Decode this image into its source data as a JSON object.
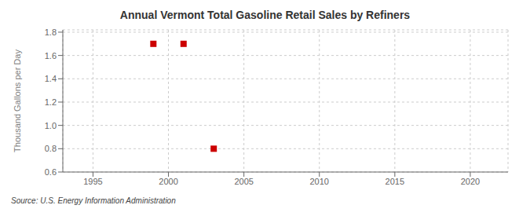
{
  "chart_data": {
    "type": "scatter",
    "title": "Annual Vermont Total Gasoline Retail Sales by Refiners",
    "ylabel": "Thousand Gallons per Day",
    "annotations": [
      "Source: U.S. Energy Information Administration"
    ],
    "x": [
      1999,
      2001,
      2003
    ],
    "values": [
      1.7,
      1.7,
      0.8
    ],
    "color": "#cc0000",
    "marker": "square",
    "xlim": [
      1993,
      2022.5
    ],
    "ylim": [
      0.6,
      1.82
    ],
    "xticks": [
      1995,
      2000,
      2005,
      2010,
      2015,
      2020
    ],
    "yticks": [
      0.6,
      0.8,
      {
        "value": 1,
        "label": "1.0"
      },
      1.2,
      1.4,
      1.6,
      1.8
    ],
    "grid": true
  }
}
